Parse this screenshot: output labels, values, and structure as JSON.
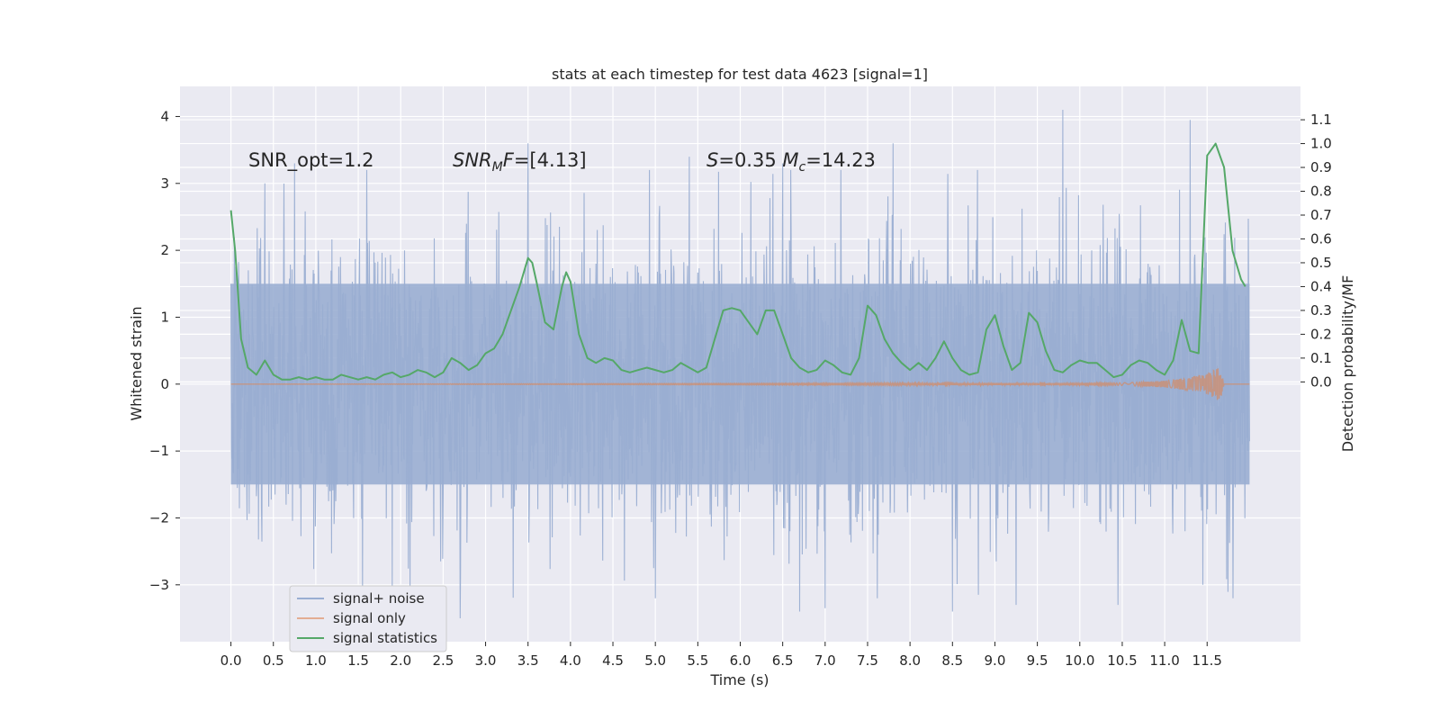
{
  "chart_data": {
    "type": "line",
    "title": "stats at each timestep for test data 4623 [signal=1]",
    "xlabel": "Time (s)",
    "ylabel": "Whitened strain",
    "ylabel_right": "Detection probability/MF",
    "xlim": [
      -0.6,
      12.6
    ],
    "ylim": [
      -3.85,
      4.45
    ],
    "ylim_right": [
      -1.09,
      1.24
    ],
    "x_ticks": [
      "0.0",
      "0.5",
      "1.0",
      "1.5",
      "2.0",
      "2.5",
      "3.0",
      "3.5",
      "4.0",
      "4.5",
      "5.0",
      "5.5",
      "6.0",
      "6.5",
      "7.0",
      "7.5",
      "8.0",
      "8.5",
      "9.0",
      "9.5",
      "10.0",
      "10.5",
      "11.0",
      "11.5"
    ],
    "y_ticks": [
      "−3",
      "−2",
      "−1",
      "0",
      "1",
      "2",
      "3",
      "4"
    ],
    "y_ticks_right": [
      "0.0",
      "0.1",
      "0.2",
      "0.3",
      "0.4",
      "0.5",
      "0.6",
      "0.7",
      "0.8",
      "0.9",
      "1.0",
      "1.1"
    ],
    "grid": true,
    "legend_position": "lower-left",
    "annotations": [
      {
        "text": "SNR_opt=1.2",
        "x": 0.2,
        "y": 3.3
      },
      {
        "text": "SNR_MF=[4.13]",
        "x": 2.6,
        "y": 3.3
      },
      {
        "text": "S=0.35   M_c=14.23",
        "x": 5.6,
        "y": 3.3
      }
    ],
    "series": [
      {
        "name": "signal+ noise",
        "color": "#9aaed2",
        "axis": "left",
        "x_range": [
          0.0,
          12.0
        ],
        "band_typical": [
          -1.5,
          1.5
        ],
        "peaks": [
          {
            "x": 0.0,
            "y": 1.5
          },
          {
            "x": 0.4,
            "y": 3.0
          },
          {
            "x": 0.75,
            "y": 3.3
          },
          {
            "x": 1.6,
            "y": 3.2
          },
          {
            "x": 3.5,
            "y": 3.6
          },
          {
            "x": 5.4,
            "y": 3.4
          },
          {
            "x": 6.5,
            "y": 3.3
          },
          {
            "x": 7.8,
            "y": 3.6
          },
          {
            "x": 9.8,
            "y": 4.1
          },
          {
            "x": 11.3,
            "y": 3.95
          },
          {
            "x": 2.7,
            "y": -3.5
          },
          {
            "x": 6.7,
            "y": -3.4
          },
          {
            "x": 7.0,
            "y": -3.35
          },
          {
            "x": 8.5,
            "y": -3.4
          },
          {
            "x": 9.25,
            "y": -3.3
          },
          {
            "x": 10.45,
            "y": -3.3
          },
          {
            "x": 11.45,
            "y": -3.0
          },
          {
            "x": 1.9,
            "y": -3.05
          }
        ]
      },
      {
        "name": "signal only",
        "color": "#dd8452",
        "axis": "left",
        "x": [
          0.0,
          10.5,
          11.0,
          11.3,
          11.5,
          11.6,
          11.65,
          11.7,
          11.8,
          12.0
        ],
        "envelope": [
          0.0,
          0.02,
          0.05,
          0.1,
          0.15,
          0.22,
          0.28,
          0.0,
          0.0,
          0.0
        ]
      },
      {
        "name": "signal statistics",
        "color": "#55a868",
        "axis": "right",
        "x": [
          0.0,
          0.05,
          0.12,
          0.2,
          0.3,
          0.4,
          0.5,
          0.6,
          0.7,
          0.8,
          0.9,
          1.0,
          1.1,
          1.2,
          1.3,
          1.4,
          1.5,
          1.6,
          1.7,
          1.8,
          1.9,
          2.0,
          2.1,
          2.2,
          2.3,
          2.4,
          2.5,
          2.6,
          2.7,
          2.8,
          2.9,
          3.0,
          3.1,
          3.2,
          3.3,
          3.4,
          3.5,
          3.55,
          3.6,
          3.7,
          3.8,
          3.9,
          3.95,
          4.0,
          4.1,
          4.2,
          4.3,
          4.4,
          4.5,
          4.6,
          4.7,
          4.8,
          4.9,
          5.0,
          5.1,
          5.2,
          5.3,
          5.4,
          5.5,
          5.6,
          5.7,
          5.8,
          5.9,
          6.0,
          6.1,
          6.2,
          6.3,
          6.4,
          6.5,
          6.6,
          6.7,
          6.8,
          6.9,
          7.0,
          7.1,
          7.2,
          7.3,
          7.4,
          7.5,
          7.6,
          7.7,
          7.8,
          7.9,
          8.0,
          8.1,
          8.2,
          8.3,
          8.4,
          8.5,
          8.6,
          8.7,
          8.8,
          8.9,
          9.0,
          9.1,
          9.2,
          9.3,
          9.4,
          9.5,
          9.6,
          9.7,
          9.8,
          9.9,
          10.0,
          10.1,
          10.2,
          10.3,
          10.4,
          10.5,
          10.6,
          10.7,
          10.8,
          10.9,
          11.0,
          11.1,
          11.2,
          11.3,
          11.4,
          11.5,
          11.6,
          11.7,
          11.8,
          11.9,
          11.95
        ],
        "values": [
          0.72,
          0.55,
          0.18,
          0.06,
          0.03,
          0.09,
          0.03,
          0.01,
          0.01,
          0.02,
          0.01,
          0.02,
          0.01,
          0.01,
          0.03,
          0.02,
          0.01,
          0.02,
          0.01,
          0.03,
          0.04,
          0.02,
          0.03,
          0.05,
          0.04,
          0.02,
          0.04,
          0.1,
          0.08,
          0.05,
          0.07,
          0.12,
          0.14,
          0.2,
          0.3,
          0.4,
          0.52,
          0.5,
          0.42,
          0.25,
          0.22,
          0.4,
          0.46,
          0.42,
          0.2,
          0.1,
          0.08,
          0.1,
          0.09,
          0.05,
          0.04,
          0.05,
          0.06,
          0.05,
          0.04,
          0.05,
          0.08,
          0.06,
          0.04,
          0.06,
          0.18,
          0.3,
          0.31,
          0.3,
          0.25,
          0.2,
          0.3,
          0.3,
          0.2,
          0.1,
          0.06,
          0.04,
          0.05,
          0.09,
          0.07,
          0.04,
          0.03,
          0.1,
          0.32,
          0.28,
          0.18,
          0.12,
          0.08,
          0.05,
          0.08,
          0.05,
          0.1,
          0.17,
          0.1,
          0.05,
          0.03,
          0.04,
          0.22,
          0.28,
          0.15,
          0.05,
          0.08,
          0.29,
          0.25,
          0.13,
          0.05,
          0.04,
          0.07,
          0.09,
          0.08,
          0.08,
          0.05,
          0.02,
          0.03,
          0.07,
          0.09,
          0.08,
          0.05,
          0.03,
          0.09,
          0.26,
          0.13,
          0.12,
          0.95,
          1.0,
          0.9,
          0.55,
          0.43,
          0.4
        ]
      }
    ]
  }
}
